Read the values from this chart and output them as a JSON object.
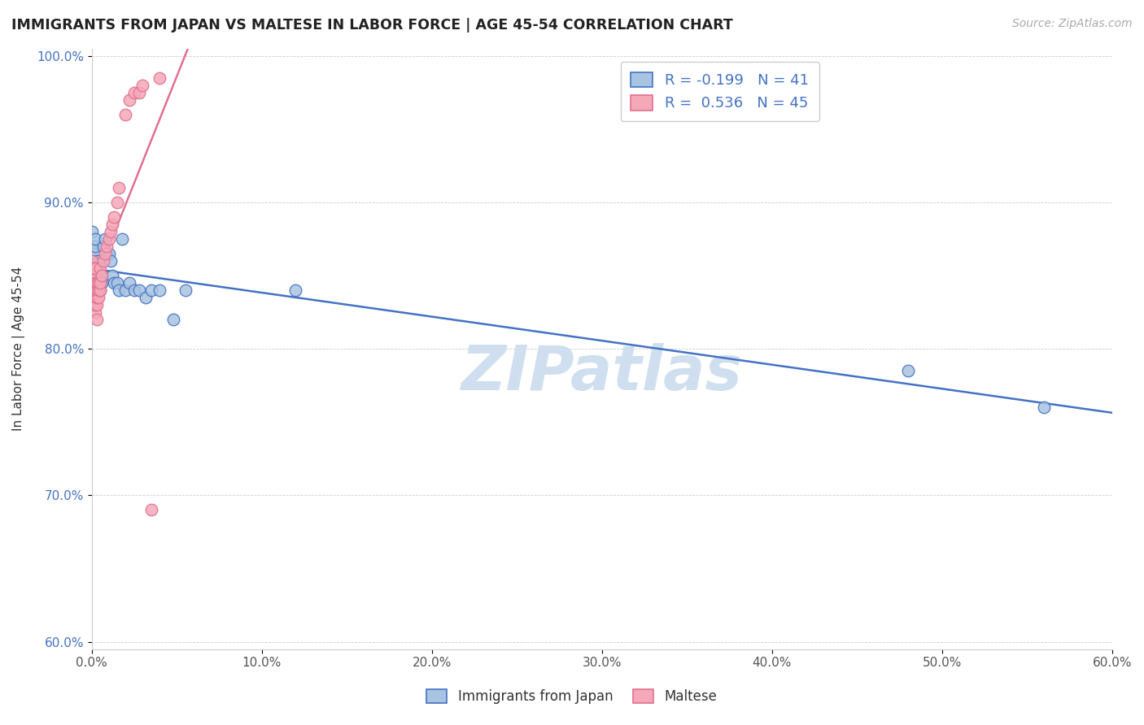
{
  "title": "IMMIGRANTS FROM JAPAN VS MALTESE IN LABOR FORCE | AGE 45-54 CORRELATION CHART",
  "source": "Source: ZipAtlas.com",
  "ylabel": "In Labor Force | Age 45-54",
  "xlim": [
    0.0,
    0.6
  ],
  "ylim": [
    0.595,
    1.005
  ],
  "xticks": [
    0.0,
    0.1,
    0.2,
    0.3,
    0.4,
    0.5,
    0.6
  ],
  "yticks": [
    0.6,
    0.7,
    0.8,
    0.9,
    1.0
  ],
  "xtick_labels": [
    "0.0%",
    "10.0%",
    "20.0%",
    "30.0%",
    "40.0%",
    "50.0%",
    "60.0%"
  ],
  "ytick_labels": [
    "60.0%",
    "70.0%",
    "80.0%",
    "90.0%",
    "100.0%"
  ],
  "legend1_label": "Immigrants from Japan",
  "legend2_label": "Maltese",
  "R1": -0.199,
  "N1": 41,
  "R2": 0.536,
  "N2": 45,
  "scatter_japan_x": [
    0.0,
    0.0,
    0.001,
    0.001,
    0.002,
    0.002,
    0.002,
    0.003,
    0.003,
    0.003,
    0.003,
    0.004,
    0.004,
    0.004,
    0.005,
    0.005,
    0.005,
    0.006,
    0.006,
    0.007,
    0.008,
    0.009,
    0.01,
    0.011,
    0.012,
    0.013,
    0.015,
    0.016,
    0.018,
    0.02,
    0.022,
    0.025,
    0.028,
    0.032,
    0.035,
    0.04,
    0.048,
    0.055,
    0.12,
    0.48,
    0.56
  ],
  "scatter_japan_y": [
    0.88,
    0.87,
    0.855,
    0.865,
    0.87,
    0.875,
    0.86,
    0.855,
    0.85,
    0.845,
    0.84,
    0.86,
    0.855,
    0.85,
    0.85,
    0.845,
    0.84,
    0.85,
    0.845,
    0.87,
    0.875,
    0.865,
    0.865,
    0.86,
    0.85,
    0.845,
    0.845,
    0.84,
    0.875,
    0.84,
    0.845,
    0.84,
    0.84,
    0.835,
    0.84,
    0.84,
    0.82,
    0.84,
    0.84,
    0.785,
    0.76
  ],
  "scatter_maltese_x": [
    0.0,
    0.0,
    0.0,
    0.0,
    0.0,
    0.001,
    0.001,
    0.001,
    0.001,
    0.001,
    0.001,
    0.002,
    0.002,
    0.002,
    0.002,
    0.002,
    0.002,
    0.003,
    0.003,
    0.003,
    0.003,
    0.003,
    0.004,
    0.004,
    0.004,
    0.005,
    0.005,
    0.005,
    0.006,
    0.007,
    0.008,
    0.009,
    0.01,
    0.011,
    0.012,
    0.013,
    0.015,
    0.016,
    0.02,
    0.022,
    0.025,
    0.028,
    0.03,
    0.035,
    0.04
  ],
  "scatter_maltese_y": [
    0.84,
    0.845,
    0.85,
    0.855,
    0.86,
    0.83,
    0.835,
    0.84,
    0.845,
    0.85,
    0.855,
    0.825,
    0.83,
    0.835,
    0.84,
    0.845,
    0.855,
    0.82,
    0.83,
    0.835,
    0.84,
    0.845,
    0.835,
    0.84,
    0.845,
    0.84,
    0.845,
    0.855,
    0.85,
    0.86,
    0.865,
    0.87,
    0.875,
    0.88,
    0.885,
    0.89,
    0.9,
    0.91,
    0.96,
    0.97,
    0.975,
    0.975,
    0.98,
    0.69,
    0.985
  ],
  "color_japan": "#a8c4e0",
  "color_maltese": "#f4a8b8",
  "color_japan_line": "#4472c4",
  "color_maltese_line": "#e07090",
  "watermark": "ZIPatlas",
  "watermark_color": "#d0dff0",
  "background_color": "#ffffff",
  "legend_color_R": "#4472c4"
}
